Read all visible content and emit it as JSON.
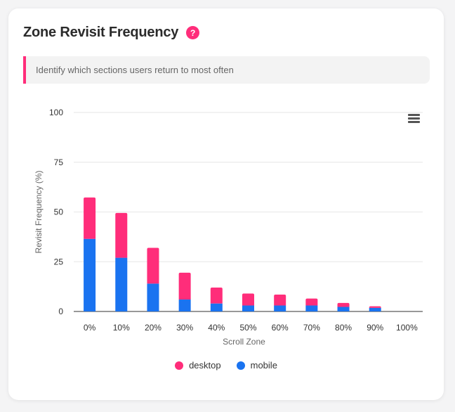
{
  "card": {
    "title": "Zone Revisit Frequency",
    "help_label": "?",
    "subtitle": "Identify which sections users return to most often"
  },
  "colors": {
    "desktop": "#ff2d7a",
    "mobile": "#1a73f0",
    "accent": "#ff2d7a"
  },
  "chart_data": {
    "type": "bar",
    "stacked": true,
    "categories": [
      "0%",
      "10%",
      "20%",
      "30%",
      "40%",
      "50%",
      "60%",
      "70%",
      "80%",
      "90%",
      "100%"
    ],
    "series": [
      {
        "name": "mobile",
        "values": [
          36.5,
          27,
          14,
          6,
          4,
          3,
          3,
          3,
          2.3,
          1.8,
          0
        ]
      },
      {
        "name": "desktop",
        "values": [
          20.8,
          22.5,
          18,
          13.5,
          8,
          6,
          5.5,
          3.5,
          2,
          0.8,
          0
        ]
      }
    ],
    "title": "",
    "xlabel": "Scroll Zone",
    "ylabel": "Revisit Frequency (%)",
    "ylim": [
      0,
      100
    ],
    "yticks": [
      0,
      25,
      50,
      75,
      100
    ],
    "grid": true,
    "legend_position": "bottom-center",
    "legend": [
      "desktop",
      "mobile"
    ]
  }
}
